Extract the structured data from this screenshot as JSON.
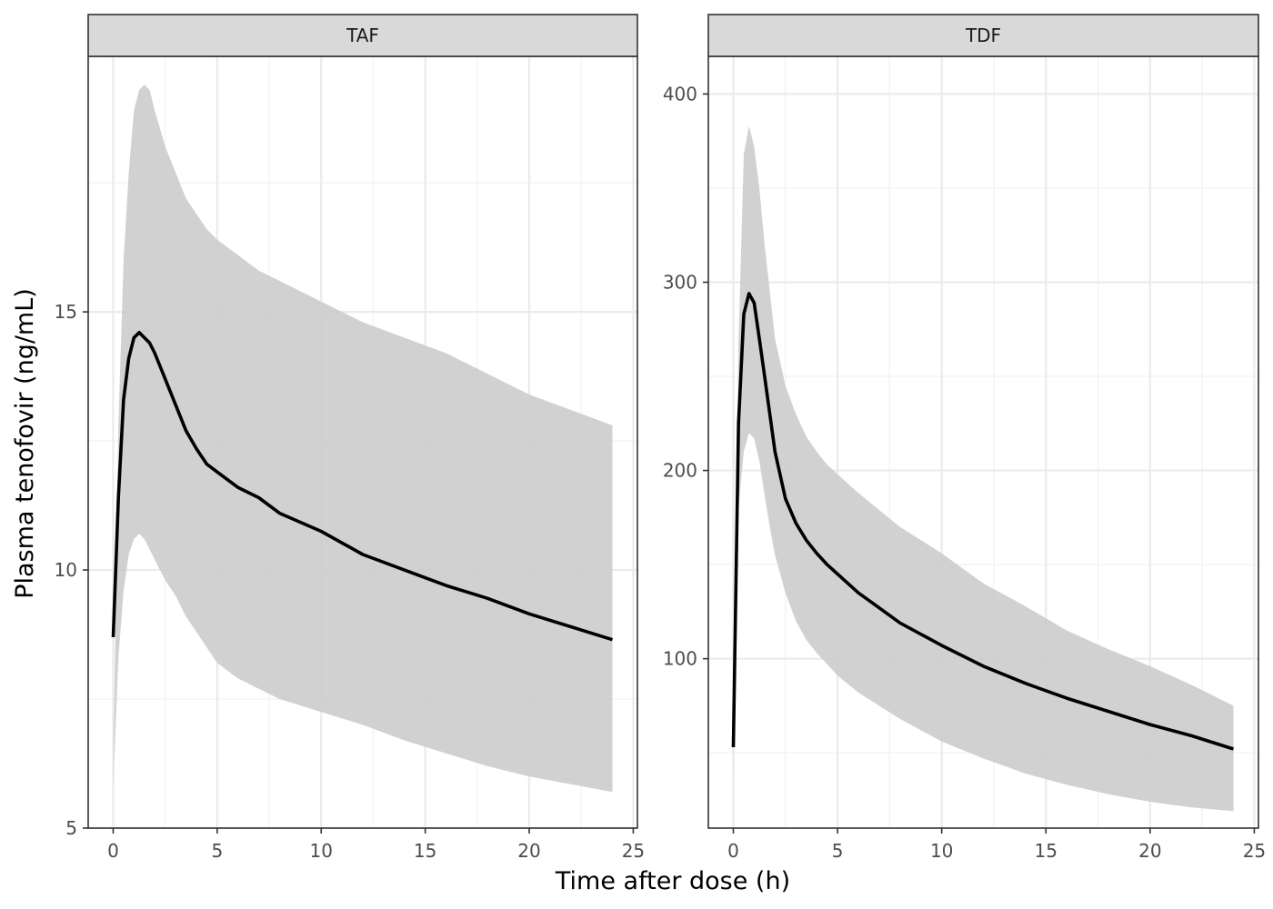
{
  "chart_data": {
    "type": "line",
    "layout": "faceted",
    "xlabel": "Time after dose (h)",
    "ylabel": "Plasma tenofovir (ng/mL)",
    "grid": true,
    "legend": "none",
    "colors": {
      "line": "#000000",
      "ribbon": "#cccccc",
      "strip_fill": "#d9d9d9",
      "grid_major": "#ebebeb",
      "grid_minor": "#f2f2f2",
      "panel_border": "#333333"
    },
    "panels": [
      {
        "facet_label": "TAF",
        "xlim": [
          -1.2,
          25.2
        ],
        "ylim": [
          5,
          19.95
        ],
        "xticks": [
          0,
          5,
          10,
          15,
          20,
          25
        ],
        "yticks": [
          5,
          10,
          15
        ],
        "x": [
          0,
          0.25,
          0.5,
          0.75,
          1.0,
          1.25,
          1.5,
          1.75,
          2.0,
          2.5,
          3.0,
          3.5,
          4.0,
          4.5,
          5.0,
          6.0,
          7.0,
          8.0,
          10.0,
          12.0,
          14.0,
          16.0,
          18.0,
          20.0,
          22.0,
          24.0
        ],
        "median": [
          8.7,
          11.4,
          13.3,
          14.1,
          14.5,
          14.6,
          14.5,
          14.4,
          14.2,
          13.7,
          13.2,
          12.7,
          12.35,
          12.05,
          11.9,
          11.6,
          11.4,
          11.1,
          10.75,
          10.3,
          10.0,
          9.7,
          9.45,
          9.15,
          8.9,
          8.65
        ],
        "upper": [
          6.0,
          12.8,
          16.0,
          17.7,
          18.9,
          19.3,
          19.4,
          19.3,
          18.9,
          18.2,
          17.7,
          17.2,
          16.9,
          16.6,
          16.4,
          16.1,
          15.8,
          15.6,
          15.2,
          14.8,
          14.5,
          14.2,
          13.8,
          13.4,
          13.1,
          12.8
        ],
        "lower": [
          5.8,
          8.3,
          9.6,
          10.3,
          10.6,
          10.7,
          10.6,
          10.4,
          10.2,
          9.8,
          9.5,
          9.1,
          8.8,
          8.5,
          8.2,
          7.9,
          7.7,
          7.5,
          7.25,
          7.0,
          6.7,
          6.45,
          6.2,
          6.0,
          5.85,
          5.7
        ]
      },
      {
        "facet_label": "TDF",
        "xlim": [
          -1.2,
          25.2
        ],
        "ylim": [
          10,
          420
        ],
        "xticks": [
          0,
          5,
          10,
          15,
          20,
          25
        ],
        "yticks": [
          100,
          200,
          300,
          400
        ],
        "x": [
          0,
          0.25,
          0.5,
          0.75,
          1.0,
          1.25,
          1.5,
          1.75,
          2.0,
          2.5,
          3.0,
          3.5,
          4.0,
          4.5,
          5.0,
          6.0,
          7.0,
          8.0,
          10.0,
          12.0,
          14.0,
          16.0,
          18.0,
          20.0,
          22.0,
          24.0
        ],
        "median": [
          53,
          225,
          283,
          294,
          289,
          270,
          250,
          230,
          210,
          185,
          172,
          163,
          156,
          150,
          145,
          135,
          127,
          119,
          107,
          96,
          87,
          79,
          72,
          65,
          59,
          52
        ],
        "upper": [
          40,
          268,
          368,
          383,
          372,
          350,
          320,
          295,
          270,
          245,
          230,
          218,
          210,
          203,
          198,
          188,
          179,
          170,
          156,
          140,
          128,
          115,
          105,
          96,
          86,
          75
        ],
        "lower": [
          35,
          180,
          210,
          220,
          217,
          205,
          187,
          170,
          155,
          135,
          120,
          110,
          103,
          97,
          91,
          82,
          75,
          68,
          56,
          47,
          39,
          33,
          28,
          24,
          21,
          19
        ]
      }
    ]
  }
}
